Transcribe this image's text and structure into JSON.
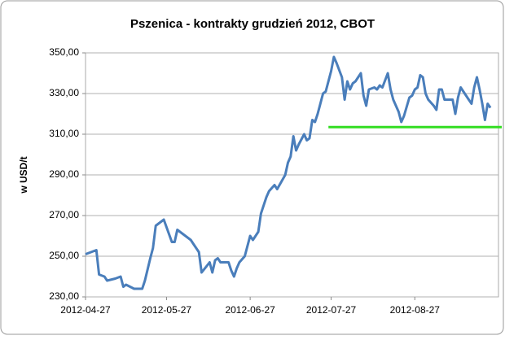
{
  "chart_data": {
    "type": "line",
    "title": "Pszenica - kontrakty grudzień 2012, CBOT",
    "y_label": "w USD/t",
    "x": [
      "2012-04-27",
      "2012-05-01",
      "2012-05-02",
      "2012-05-04",
      "2012-05-05",
      "2012-05-08",
      "2012-05-10",
      "2012-05-11",
      "2012-05-12",
      "2012-05-15",
      "2012-05-17",
      "2012-05-18",
      "2012-05-19",
      "2012-05-21",
      "2012-05-22",
      "2012-05-23",
      "2012-05-26",
      "2012-05-29",
      "2012-05-30",
      "2012-05-31",
      "2012-06-02",
      "2012-06-05",
      "2012-06-06",
      "2012-06-08",
      "2012-06-09",
      "2012-06-12",
      "2012-06-13",
      "2012-06-14",
      "2012-06-15",
      "2012-06-16",
      "2012-06-19",
      "2012-06-20",
      "2012-06-21",
      "2012-06-22",
      "2012-06-23",
      "2012-06-25",
      "2012-06-27",
      "2012-06-28",
      "2012-06-29",
      "2012-06-30",
      "2012-07-01",
      "2012-07-03",
      "2012-07-04",
      "2012-07-06",
      "2012-07-07",
      "2012-07-10",
      "2012-07-11",
      "2012-07-12",
      "2012-07-13",
      "2012-07-14",
      "2012-07-15",
      "2012-07-17",
      "2012-07-18",
      "2012-07-19",
      "2012-07-20",
      "2012-07-21",
      "2012-07-22",
      "2012-07-24",
      "2012-07-25",
      "2012-07-27",
      "2012-07-28",
      "2012-07-29",
      "2012-07-31",
      "2012-08-01",
      "2012-08-02",
      "2012-08-03",
      "2012-08-04",
      "2012-08-05",
      "2012-08-07",
      "2012-08-08",
      "2012-08-09",
      "2012-08-10",
      "2012-08-12",
      "2012-08-13",
      "2012-08-14",
      "2012-08-15",
      "2012-08-17",
      "2012-08-18",
      "2012-08-19",
      "2012-08-21",
      "2012-08-22",
      "2012-08-23",
      "2012-08-25",
      "2012-08-26",
      "2012-08-27",
      "2012-08-28",
      "2012-08-29",
      "2012-08-30",
      "2012-08-31",
      "2012-09-01",
      "2012-09-03",
      "2012-09-04",
      "2012-09-05",
      "2012-09-06",
      "2012-09-07",
      "2012-09-09",
      "2012-09-10",
      "2012-09-11",
      "2012-09-12",
      "2012-09-13",
      "2012-09-15",
      "2012-09-16",
      "2012-09-17",
      "2012-09-18",
      "2012-09-19",
      "2012-09-20",
      "2012-09-21",
      "2012-09-22",
      "2012-09-23",
      "2012-09-24"
    ],
    "series": [
      {
        "name": "Pszenica",
        "color": "#4a7ebb",
        "values": [
          251,
          253,
          241,
          240,
          238,
          239,
          240,
          235,
          236,
          234,
          234,
          234,
          238,
          249,
          254,
          265,
          268,
          257,
          257,
          263,
          261,
          258,
          256,
          252,
          242,
          247,
          242,
          248,
          249,
          247,
          247,
          243,
          240,
          244,
          247,
          250,
          260,
          258,
          260,
          262,
          271,
          279,
          282,
          285,
          283,
          290,
          296,
          299,
          309,
          302,
          305,
          310,
          307,
          308,
          317,
          316,
          320,
          330,
          331,
          341,
          348,
          345,
          338,
          327,
          336,
          332,
          335,
          336,
          340,
          329,
          324,
          332,
          333,
          332,
          334,
          333,
          340,
          332,
          327,
          321,
          316,
          319,
          328,
          329,
          332,
          333,
          339,
          338,
          330,
          327,
          324,
          322,
          332,
          332,
          327,
          327,
          327,
          320,
          328,
          333,
          329,
          327,
          325,
          333,
          338,
          332,
          325,
          317,
          325,
          323
        ]
      }
    ],
    "xlim": [
      "2012-04-27",
      "2012-09-27"
    ],
    "xticks": [
      "2012-04-27",
      "2012-05-27",
      "2012-06-27",
      "2012-07-27",
      "2012-08-27"
    ],
    "ylim": [
      230,
      350
    ],
    "yticks": [
      {
        "value": 230,
        "label": "230,00"
      },
      {
        "value": 250,
        "label": "250,00"
      },
      {
        "value": 270,
        "label": "270,00"
      },
      {
        "value": 290,
        "label": "290,00"
      },
      {
        "value": 310,
        "label": "310,00"
      },
      {
        "value": 330,
        "label": "330,00"
      },
      {
        "value": 350,
        "label": "350,00"
      }
    ],
    "grid": true,
    "reference_line": {
      "value": 313.5,
      "start": "2012-07-26",
      "color": "#33dd22"
    }
  }
}
